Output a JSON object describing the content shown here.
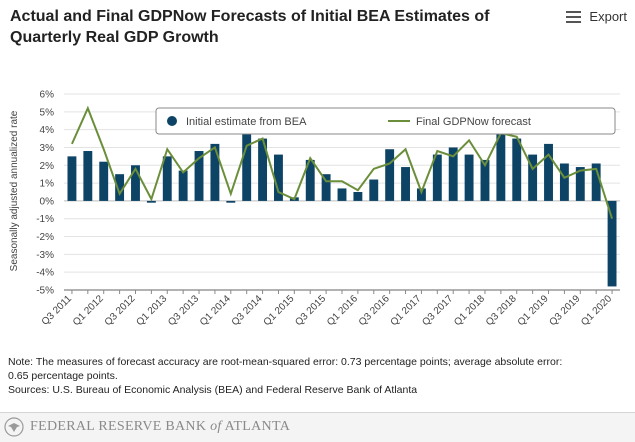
{
  "header": {
    "title_line1": "Actual and Final GDPNow Forecasts of Initial BEA Estimates of",
    "title_line2": "Quarterly Real GDP Growth",
    "export_label": "Export",
    "export_icon": "hamburger-menu-icon"
  },
  "chart_data": {
    "type": "bar",
    "title": "Actual and Final GDPNow Forecasts of Initial BEA Estimates of Quarterly Real GDP Growth",
    "xlabel": "",
    "ylabel": "Seasonally adjusted annualized rate",
    "ylim": [
      -5,
      6
    ],
    "yticks": [
      -5,
      -4,
      -3,
      -2,
      -1,
      0,
      1,
      2,
      3,
      4,
      5,
      6
    ],
    "ytick_labels": [
      "-5%",
      "-4%",
      "-3%",
      "-2%",
      "-1%",
      "0%",
      "1%",
      "2%",
      "3%",
      "4%",
      "5%",
      "6%"
    ],
    "legend_position": "top",
    "categories": [
      "Q3 2011",
      "Q4 2011",
      "Q1 2012",
      "Q2 2012",
      "Q3 2012",
      "Q4 2012",
      "Q1 2013",
      "Q2 2013",
      "Q3 2013",
      "Q4 2013",
      "Q1 2014",
      "Q2 2014",
      "Q3 2014",
      "Q4 2014",
      "Q1 2015",
      "Q2 2015",
      "Q3 2015",
      "Q4 2015",
      "Q1 2016",
      "Q2 2016",
      "Q3 2016",
      "Q4 2016",
      "Q1 2017",
      "Q2 2017",
      "Q3 2017",
      "Q4 2017",
      "Q1 2018",
      "Q2 2018",
      "Q3 2018",
      "Q4 2018",
      "Q1 2019",
      "Q2 2019",
      "Q3 2019",
      "Q4 2019",
      "Q1 2020"
    ],
    "tick_labels": [
      "Q3 2011",
      "Q1 2012",
      "Q3 2012",
      "Q1 2013",
      "Q3 2013",
      "Q1 2014",
      "Q3 2014",
      "Q1 2015",
      "Q3 2015",
      "Q1 2016",
      "Q3 2016",
      "Q1 2017",
      "Q3 2017",
      "Q1 2018",
      "Q3 2018",
      "Q1 2019",
      "Q3 2019",
      "Q1 2020"
    ],
    "series": [
      {
        "name": "Initial estimate from BEA",
        "kind": "bar",
        "color": "#0d4466",
        "values": [
          2.5,
          2.8,
          2.2,
          1.5,
          2.0,
          -0.1,
          2.5,
          1.7,
          2.8,
          3.2,
          -0.1,
          4.0,
          3.5,
          2.6,
          0.2,
          2.3,
          1.5,
          0.7,
          0.5,
          1.2,
          2.9,
          1.9,
          0.7,
          2.6,
          3.0,
          2.6,
          2.3,
          4.1,
          3.5,
          2.6,
          3.2,
          2.1,
          1.9,
          2.1,
          -4.8
        ]
      },
      {
        "name": "Final GDPNow forecast",
        "kind": "line",
        "color": "#6b8e3a",
        "values": [
          3.2,
          5.2,
          2.9,
          0.4,
          1.8,
          0.1,
          2.9,
          1.6,
          2.4,
          3.0,
          0.4,
          3.1,
          3.5,
          0.5,
          0.1,
          2.4,
          1.1,
          1.1,
          0.6,
          1.8,
          2.1,
          2.9,
          0.5,
          2.8,
          2.5,
          3.4,
          2.0,
          3.8,
          3.6,
          1.8,
          2.6,
          1.3,
          1.7,
          1.8,
          -1.0
        ]
      }
    ]
  },
  "notes": {
    "line1": "Note: The measures of forecast accuracy are root-mean-squared error: 0.73 percentage points; average absolute error:",
    "line2": "0.65 percentage points.",
    "line3": "Sources: U.S. Bureau of Economic Analysis (BEA) and Federal Reserve Bank of Atlanta"
  },
  "footer": {
    "logo_text_a": "FEDERAL RESERVE BANK ",
    "logo_text_of": "of",
    "logo_text_b": " ATLANTA",
    "logo_icon": "eagle-seal-icon"
  }
}
